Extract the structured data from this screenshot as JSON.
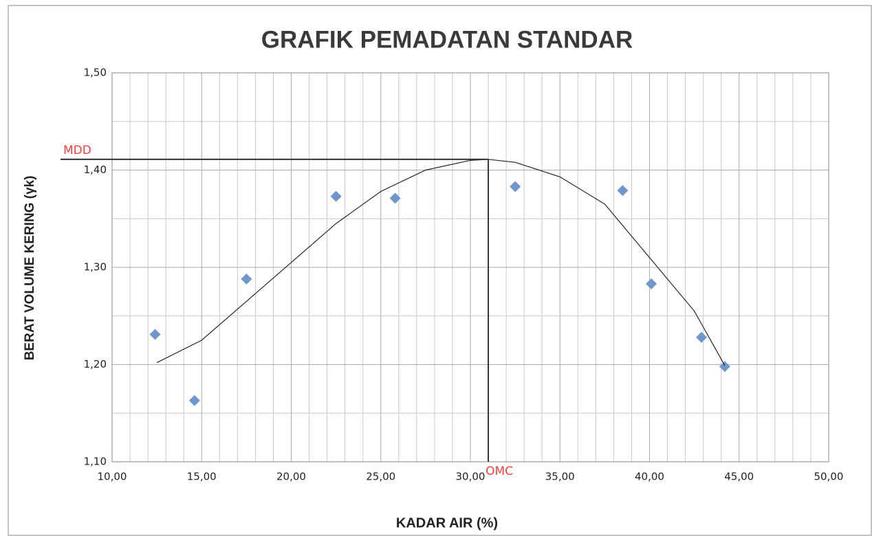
{
  "chart_data": {
    "type": "scatter",
    "title": "GRAFIK PEMADATAN STANDAR",
    "x_label": "KADAR AIR (%)",
    "y_label": "BERAT VOLUME KERING (γk)",
    "xlim": [
      10,
      50
    ],
    "ylim": [
      1.1,
      1.5
    ],
    "xticks": [
      {
        "value": 10,
        "label": "10,00"
      },
      {
        "value": 15,
        "label": "15,00"
      },
      {
        "value": 20,
        "label": "20,00"
      },
      {
        "value": 25,
        "label": "25,00"
      },
      {
        "value": 30,
        "label": "30,00"
      },
      {
        "value": 35,
        "label": "35,00"
      },
      {
        "value": 40,
        "label": "40,00"
      },
      {
        "value": 45,
        "label": "45,00"
      },
      {
        "value": 50,
        "label": "50,00"
      }
    ],
    "yticks": [
      {
        "value": 1.1,
        "label": "1,10"
      },
      {
        "value": 1.2,
        "label": "1,20"
      },
      {
        "value": 1.3,
        "label": "1,30"
      },
      {
        "value": 1.4,
        "label": "1,40"
      },
      {
        "value": 1.5,
        "label": "1,50"
      }
    ],
    "xgrid": [
      11,
      12,
      13,
      14,
      16,
      17,
      18,
      19,
      21,
      22,
      23,
      24,
      26,
      27,
      28,
      29,
      31,
      32,
      33,
      34,
      36,
      37,
      38,
      39,
      41,
      42,
      43,
      44,
      46,
      47,
      48,
      49
    ],
    "ygrid": [
      1.15,
      1.25,
      1.35,
      1.45
    ],
    "grid": true,
    "series": [
      {
        "color": "#6f97cc",
        "x": [
          12.4,
          14.6,
          17.5,
          22.5,
          25.8,
          32.5,
          38.5,
          40.1,
          42.9,
          44.2
        ],
        "values": [
          1.231,
          1.163,
          1.288,
          1.373,
          1.371,
          1.383,
          1.379,
          1.283,
          1.228,
          1.198
        ]
      },
      {
        "kind": "trend",
        "color": "#222222",
        "x": [
          12.5,
          15,
          17.5,
          20,
          22.5,
          25,
          27.5,
          30,
          31,
          32.5,
          35,
          37.5,
          40,
          42.5,
          44.2
        ],
        "values": [
          1.202,
          1.225,
          1.265,
          1.305,
          1.345,
          1.378,
          1.4,
          1.41,
          1.411,
          1.408,
          1.393,
          1.365,
          1.31,
          1.255,
          1.199
        ]
      }
    ],
    "mdd": {
      "label": "MDD",
      "value": 1.411,
      "color": "#ff3b3b"
    },
    "omc": {
      "label": "OMC",
      "value": 31.0,
      "color": "#ff3b3b"
    }
  }
}
